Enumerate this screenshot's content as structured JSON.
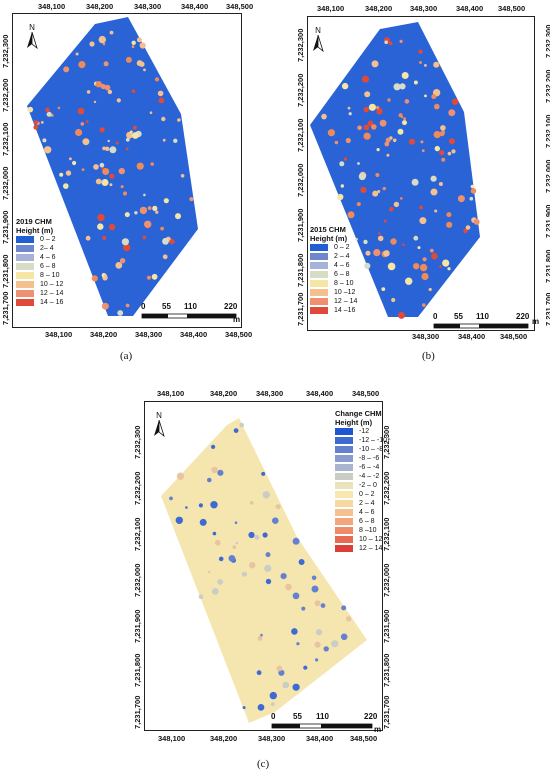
{
  "north_label": "N",
  "scale": {
    "labels": [
      "0",
      "55",
      "110",
      "220"
    ],
    "unit": "m"
  },
  "legend_title": "Height (m)",
  "colors": {
    "polygon_a_bg": "#2a63d6",
    "polygon_c_bg": "#f5e6b0",
    "crown_high": "#ee8a5c",
    "crown_mid": "#f7c79a"
  },
  "panels": [
    {
      "caption": "(a)",
      "legend_heading": "2019 CHM",
      "x_ticks": [
        "348,100",
        "348,200",
        "348,300",
        "348,400",
        "348,500"
      ],
      "x_ticks_bottom": [
        "348,100",
        "348,200",
        "348,300",
        "348,400",
        "348,500"
      ],
      "y_ticks": [
        "7,232,300",
        "7,232,200",
        "7,232,100",
        "7,232,000",
        "7,231,900",
        "7,231,800",
        "7,231,700"
      ],
      "legend": [
        {
          "label": "0 – 2",
          "color": "#1f5fd1"
        },
        {
          "label": "2– 4",
          "color": "#6f87cf"
        },
        {
          "label": "4 – 6",
          "color": "#a6b2d8"
        },
        {
          "label": "6 – 8",
          "color": "#d7dcc6"
        },
        {
          "label": "8 – 10",
          "color": "#f6e6a6"
        },
        {
          "label": "10 – 12",
          "color": "#f5c08f"
        },
        {
          "label": "12 – 14",
          "color": "#ef9070"
        },
        {
          "label": "14 – 16",
          "color": "#df4a3a"
        }
      ]
    },
    {
      "caption": "(b)",
      "legend_heading": "2015 CHM",
      "x_ticks": [
        "348,100",
        "348,200",
        "348,300",
        "348,400",
        "348,500"
      ],
      "x_ticks_bottom": [
        "348,300",
        "348,400",
        "348,500"
      ],
      "y_ticks": [
        "7,232,300",
        "7,232,200",
        "7,232,100",
        "7,232,000",
        "7,231,900",
        "7,231,800",
        "7,231,700"
      ],
      "legend": [
        {
          "label": "0 – 2",
          "color": "#1f5fd1"
        },
        {
          "label": "2 – 4",
          "color": "#6f87cf"
        },
        {
          "label": "4 – 6",
          "color": "#a6b2d8"
        },
        {
          "label": "6 – 8",
          "color": "#d7dcc6"
        },
        {
          "label": "8 – 10",
          "color": "#f6e6a6"
        },
        {
          "label": "10 –12",
          "color": "#f5c08f"
        },
        {
          "label": "12 – 14",
          "color": "#ef9070"
        },
        {
          "label": "14 –16",
          "color": "#df4a3a"
        }
      ]
    },
    {
      "caption": "(c)",
      "legend_heading": "Change CHM",
      "x_ticks": [
        "348,100",
        "348,200",
        "348,300",
        "348,400",
        "348,500"
      ],
      "x_ticks_bottom": [
        "348,100",
        "348,200",
        "348,300",
        "348,400",
        "348,500"
      ],
      "y_ticks": [
        "7,232,300",
        "7,232,200",
        "7,232,100",
        "7,232,000",
        "7,231,900",
        "7,231,800",
        "7,231,700"
      ],
      "legend": [
        {
          "label": "-12",
          "color": "#1f55d4"
        },
        {
          "label": "-12 – -10",
          "color": "#3f6ad4"
        },
        {
          "label": "-10 – -8",
          "color": "#6680d0"
        },
        {
          "label": "-8 – -6",
          "color": "#8a9bd0"
        },
        {
          "label": "-6 – -4",
          "color": "#aab4cf"
        },
        {
          "label": "-4 – -2",
          "color": "#c9cdc6"
        },
        {
          "label": "-2 – 0",
          "color": "#e9e2ba"
        },
        {
          "label": "0 – 2",
          "color": "#f8e8b0"
        },
        {
          "label": "2 – 4",
          "color": "#f7d8a2"
        },
        {
          "label": "4 – 6",
          "color": "#f6c191"
        },
        {
          "label": "6 – 8",
          "color": "#f3a57d"
        },
        {
          "label": "8 –10",
          "color": "#ef8b68"
        },
        {
          "label": "10 – 12",
          "color": "#e86a52"
        },
        {
          "label": "12 – 14",
          "color": "#dc3f3a"
        }
      ]
    }
  ]
}
